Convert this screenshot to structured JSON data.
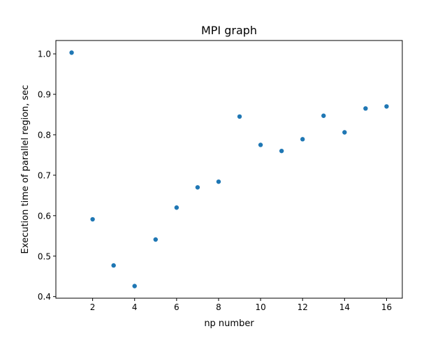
{
  "chart_data": {
    "type": "scatter",
    "title": "MPI graph",
    "xlabel": "np number",
    "ylabel": "Execution time of parallel region, sec",
    "x": [
      1,
      2,
      3,
      4,
      5,
      6,
      7,
      8,
      9,
      10,
      11,
      12,
      13,
      14,
      15,
      16
    ],
    "y": [
      1.003,
      0.591,
      0.477,
      0.426,
      0.541,
      0.62,
      0.67,
      0.684,
      0.845,
      0.775,
      0.76,
      0.789,
      0.847,
      0.806,
      0.865,
      0.87
    ],
    "xticks": [
      2,
      4,
      6,
      8,
      10,
      12,
      14,
      16
    ],
    "yticks": [
      0.4,
      0.5,
      0.6,
      0.7,
      0.8,
      0.9,
      1.0
    ],
    "ytick_labels": [
      "0.4",
      "0.5",
      "0.6",
      "0.7",
      "0.8",
      "0.9",
      "1.0"
    ],
    "xlim": [
      0.25,
      16.75
    ],
    "ylim": [
      0.396,
      1.033
    ],
    "grid": false,
    "marker_color": "#1f77b4"
  }
}
